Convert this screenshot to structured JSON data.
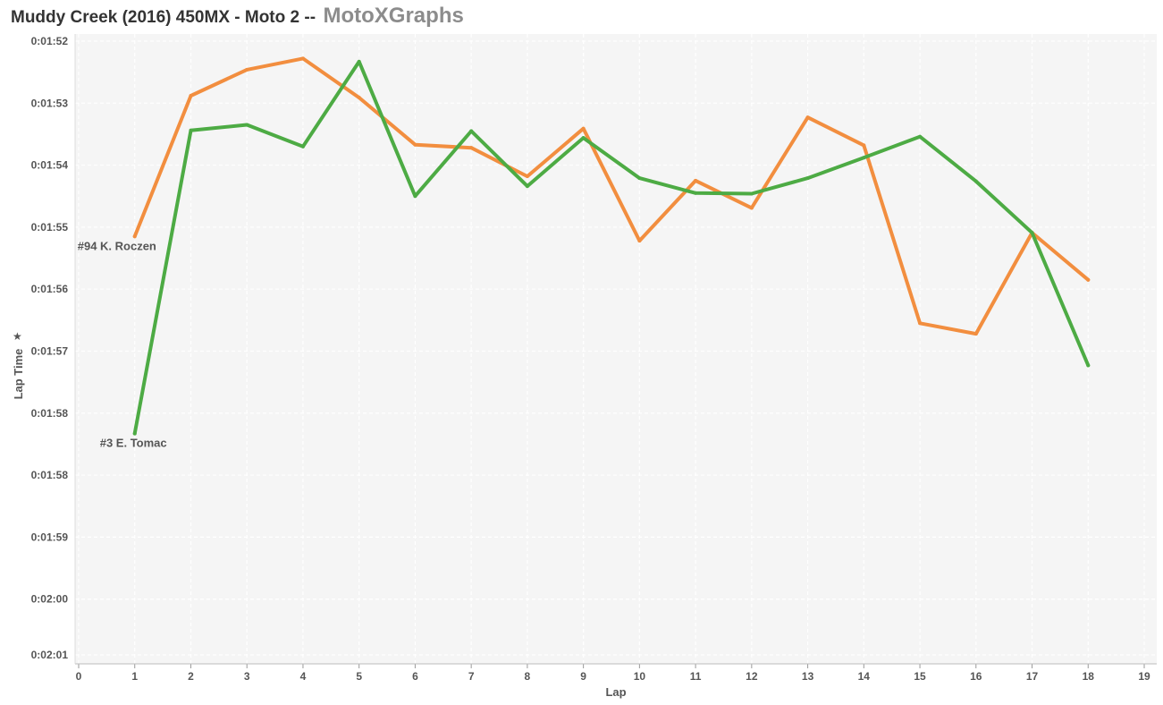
{
  "title": {
    "main": "Muddy Creek (2016) 450MX - Moto 2 --",
    "brand": "MotoXGraphs"
  },
  "colors": {
    "roczen": "#f28e3f",
    "tomac": "#4dab44",
    "plot_bg": "#f5f5f5",
    "grid": "#ffffff",
    "text": "#555555"
  },
  "chart_data": {
    "type": "line",
    "xlabel": "Lap",
    "ylabel": "Lap Time",
    "xlim": [
      0,
      19
    ],
    "x_ticks": [
      0,
      1,
      2,
      3,
      4,
      5,
      6,
      7,
      8,
      9,
      10,
      11,
      12,
      13,
      14,
      15,
      16,
      17,
      18,
      19
    ],
    "y_unit": "seconds",
    "ylim": [
      111.7,
      121.6
    ],
    "y_inverted": true,
    "y_ticks": [
      {
        "value": 111.7,
        "label": "0:01:52"
      },
      {
        "value": 112.7,
        "label": "0:01:53"
      },
      {
        "value": 113.7,
        "label": "0:01:54"
      },
      {
        "value": 114.7,
        "label": "0:01:55"
      },
      {
        "value": 115.7,
        "label": "0:01:56"
      },
      {
        "value": 116.7,
        "label": "0:01:57"
      },
      {
        "value": 117.7,
        "label": "0:01:58"
      },
      {
        "value": 118.7,
        "label": "0:01:58"
      },
      {
        "value": 119.7,
        "label": "0:01:59"
      },
      {
        "value": 120.7,
        "label": "0:02:00"
      },
      {
        "value": 121.6,
        "label": "0:02:01"
      }
    ],
    "grid": true,
    "series": [
      {
        "name": "#94 K. Roczen",
        "color": "#f28e3f",
        "x": [
          1,
          2,
          3,
          4,
          5,
          6,
          7,
          8,
          9,
          10,
          11,
          12,
          13,
          14,
          15,
          16,
          17,
          18
        ],
        "y": [
          114.85,
          112.58,
          112.16,
          111.98,
          112.61,
          113.37,
          113.42,
          113.88,
          113.11,
          114.92,
          113.95,
          114.39,
          112.93,
          113.38,
          116.25,
          116.42,
          114.79,
          115.55
        ]
      },
      {
        "name": "#3 E. Tomac",
        "color": "#4dab44",
        "x": [
          1,
          2,
          3,
          4,
          5,
          6,
          7,
          8,
          9,
          10,
          11,
          12,
          13,
          14,
          15,
          16,
          17,
          18
        ],
        "y": [
          118.03,
          113.14,
          113.05,
          113.4,
          112.03,
          114.2,
          113.15,
          114.04,
          113.26,
          113.91,
          114.15,
          114.16,
          113.91,
          113.58,
          113.24,
          113.96,
          114.79,
          116.93
        ]
      }
    ]
  }
}
